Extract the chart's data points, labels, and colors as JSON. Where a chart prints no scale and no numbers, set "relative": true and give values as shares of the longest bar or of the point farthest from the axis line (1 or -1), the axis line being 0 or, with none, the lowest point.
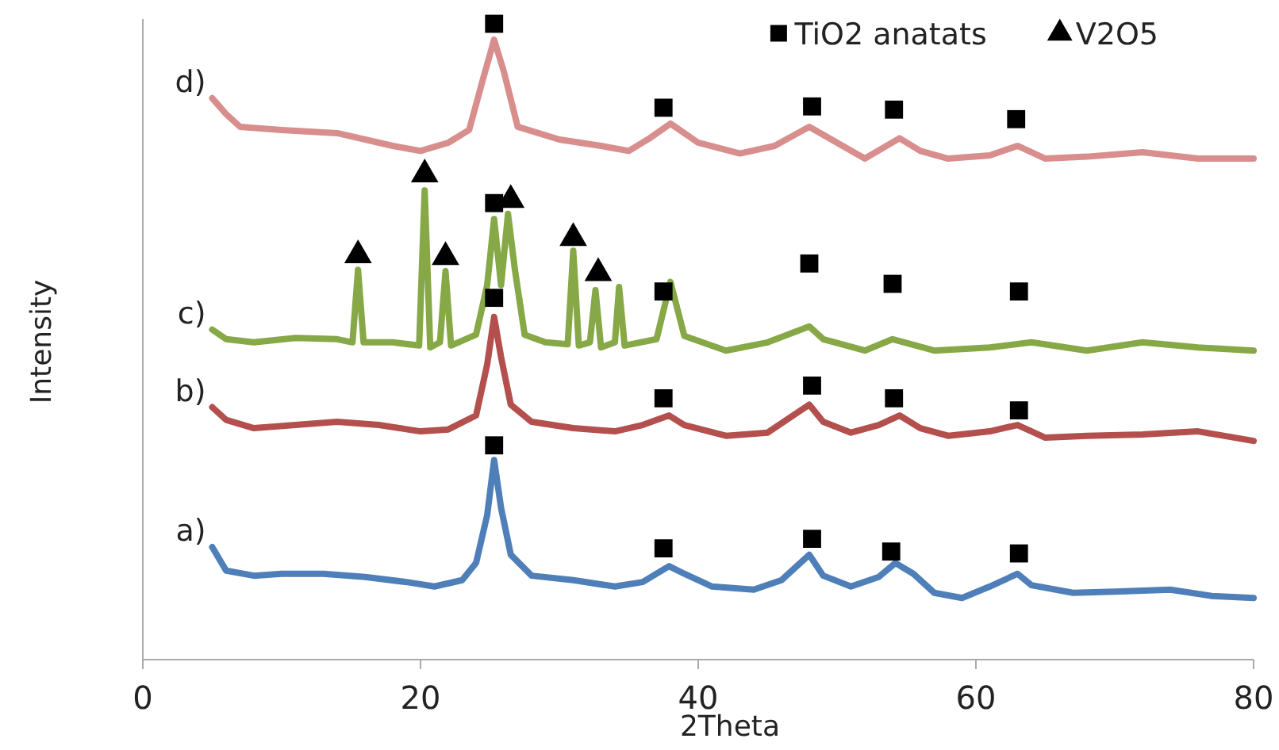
{
  "chart_data": {
    "type": "line",
    "relative": true,
    "xlabel": "2Theta",
    "ylabel": "Intensity",
    "xlim": [
      0,
      80
    ],
    "xticks": [
      0,
      20,
      40,
      60,
      80
    ],
    "grid": false,
    "legend": "top right",
    "line_style": "solid",
    "series": [
      {
        "name": "a)",
        "color": "#4f7fb8",
        "x": [
          5,
          6,
          8,
          10,
          13,
          16,
          19,
          21,
          23,
          24,
          24.8,
          25.3,
          25.8,
          26.5,
          28,
          31,
          34,
          36,
          37.9,
          39,
          41,
          44,
          46,
          48,
          49,
          51,
          53,
          54.2,
          55.5,
          57,
          59,
          61,
          63,
          64,
          67,
          70,
          74,
          77,
          80
        ],
        "values": [
          0.177,
          0.14,
          0.132,
          0.135,
          0.135,
          0.13,
          0.122,
          0.115,
          0.125,
          0.152,
          0.227,
          0.314,
          0.239,
          0.165,
          0.132,
          0.125,
          0.115,
          0.122,
          0.147,
          0.135,
          0.115,
          0.11,
          0.125,
          0.165,
          0.132,
          0.115,
          0.13,
          0.152,
          0.135,
          0.105,
          0.097,
          0.115,
          0.135,
          0.117,
          0.105,
          0.107,
          0.11,
          0.1,
          0.097
        ]
      },
      {
        "name": "b)",
        "color": "#b3504d",
        "x": [
          5,
          6,
          8,
          11,
          14,
          17,
          20,
          22,
          24,
          24.8,
          25.3,
          25.8,
          26.5,
          28,
          31,
          34,
          36,
          37.9,
          39,
          42,
          45,
          48,
          49,
          51,
          53,
          54.5,
          56,
          58,
          61,
          63,
          65,
          68,
          72,
          76,
          80
        ],
        "values": [
          0.397,
          0.377,
          0.364,
          0.369,
          0.374,
          0.369,
          0.359,
          0.362,
          0.384,
          0.464,
          0.539,
          0.476,
          0.401,
          0.374,
          0.364,
          0.359,
          0.369,
          0.384,
          0.369,
          0.352,
          0.357,
          0.401,
          0.374,
          0.357,
          0.369,
          0.384,
          0.364,
          0.352,
          0.359,
          0.369,
          0.349,
          0.352,
          0.354,
          0.359,
          0.344
        ]
      },
      {
        "name": "c)",
        "color": "#86a846",
        "x": [
          5,
          6,
          8,
          11,
          14,
          15.1,
          15.5,
          15.9,
          18,
          19.9,
          20.3,
          20.7,
          21.4,
          21.8,
          22.2,
          24,
          24.8,
          25.3,
          25.8,
          26.3,
          26.8,
          27.5,
          29,
          30.6,
          31,
          31.4,
          32.2,
          32.6,
          33,
          34,
          34.3,
          34.7,
          37,
          38,
          39,
          42,
          45,
          48,
          49,
          52,
          54,
          57,
          61,
          64,
          68,
          72,
          76,
          80
        ],
        "values": [
          0.519,
          0.504,
          0.499,
          0.506,
          0.504,
          0.499,
          0.613,
          0.499,
          0.499,
          0.494,
          0.738,
          0.491,
          0.499,
          0.611,
          0.494,
          0.511,
          0.589,
          0.693,
          0.589,
          0.701,
          0.613,
          0.511,
          0.499,
          0.496,
          0.643,
          0.494,
          0.499,
          0.581,
          0.491,
          0.499,
          0.586,
          0.494,
          0.504,
          0.594,
          0.509,
          0.486,
          0.499,
          0.524,
          0.504,
          0.486,
          0.504,
          0.486,
          0.491,
          0.499,
          0.486,
          0.499,
          0.491,
          0.486
        ]
      },
      {
        "name": "d)",
        "color": "#d88e8c",
        "x": [
          5,
          6,
          7,
          10,
          14,
          18,
          20,
          22,
          23.5,
          24.5,
          25.3,
          26,
          27,
          30,
          33,
          35,
          36.5,
          38,
          40,
          43,
          45.5,
          48,
          50,
          52,
          54.5,
          56,
          58,
          61,
          63,
          65,
          68,
          72,
          76,
          80
        ],
        "values": [
          0.883,
          0.858,
          0.838,
          0.833,
          0.828,
          0.808,
          0.8,
          0.813,
          0.833,
          0.913,
          0.975,
          0.925,
          0.838,
          0.818,
          0.808,
          0.8,
          0.82,
          0.843,
          0.813,
          0.796,
          0.808,
          0.838,
          0.813,
          0.788,
          0.82,
          0.8,
          0.788,
          0.793,
          0.808,
          0.788,
          0.791,
          0.798,
          0.788,
          0.788
        ]
      },
      {
        "name": "TiO2 anatats",
        "type": "scatter",
        "marker": "square",
        "color": "#000000",
        "x": [
          25.3,
          37.5,
          48.2,
          54.1,
          62.9,
          25.3,
          37.5,
          48,
          54,
          63.1,
          25.3,
          37.5,
          48.2,
          54.1,
          63.1,
          25.3,
          37.5,
          48.2,
          53.9,
          63.1
        ],
        "values": [
          1.0,
          0.868,
          0.87,
          0.865,
          0.85,
          0.718,
          0.579,
          0.623,
          0.591,
          0.579,
          0.569,
          0.411,
          0.431,
          0.411,
          0.392,
          0.337,
          0.175,
          0.19,
          0.17,
          0.167
        ]
      },
      {
        "name": "V2O5",
        "type": "scatter",
        "marker": "triangle",
        "color": "#000000",
        "x": [
          15.5,
          20.3,
          21.8,
          26.5,
          31,
          32.8
        ],
        "values": [
          0.636,
          0.763,
          0.633,
          0.723,
          0.663,
          0.608
        ]
      }
    ]
  }
}
